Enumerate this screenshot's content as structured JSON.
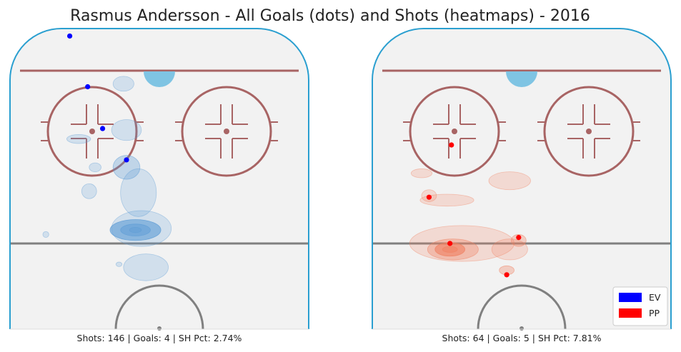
{
  "title": "Rasmus Andersson - All Goals (dots) and Shots (heatmaps) - 2016",
  "colors": {
    "ice": "#f2f2f2",
    "boards": "#2a9fd0",
    "red_line": "#a86464",
    "center_line": "#808080",
    "crease": "#7fc4e3",
    "ev": "#0000ff",
    "pp": "#ff0000",
    "ev_heat": "#5b9bd5",
    "pp_heat": "#f08060"
  },
  "legend": {
    "placement": "lower-right",
    "items": [
      {
        "label": "EV",
        "color": "#0000ff"
      },
      {
        "label": "PP",
        "color": "#ff0000"
      }
    ]
  },
  "chart_data": [
    {
      "type": "scatter",
      "strength": "EV",
      "caption": "Shots: 146 | Goals: 4 | SH Pct: 2.74%",
      "goals": [
        {
          "x": 0.4,
          "y": 0.05
        },
        {
          "x": 0.52,
          "y": 0.39
        },
        {
          "x": 0.62,
          "y": 0.67
        },
        {
          "x": 0.78,
          "y": 0.88
        }
      ],
      "heatmap": [
        {
          "x": 0.84,
          "y": 1.35,
          "w": 0.17,
          "h": 0.07,
          "v": 4
        },
        {
          "x": 0.84,
          "y": 1.35,
          "w": 0.1,
          "h": 0.04,
          "v": 3
        },
        {
          "x": 0.84,
          "y": 1.35,
          "w": 0.04,
          "h": 0.018,
          "v": 2
        },
        {
          "x": 0.78,
          "y": 0.93,
          "w": 0.09,
          "h": 0.08,
          "v": 2
        },
        {
          "x": 0.86,
          "y": 1.1,
          "w": 0.12,
          "h": 0.16,
          "v": 1
        },
        {
          "x": 0.78,
          "y": 0.68,
          "w": 0.1,
          "h": 0.07,
          "v": 1
        },
        {
          "x": 0.91,
          "y": 1.6,
          "w": 0.15,
          "h": 0.09,
          "v": 1
        },
        {
          "x": 0.88,
          "y": 1.34,
          "w": 0.2,
          "h": 0.12,
          "v": 1
        },
        {
          "x": 0.76,
          "y": 0.37,
          "w": 0.07,
          "h": 0.05,
          "v": 1
        },
        {
          "x": 0.46,
          "y": 0.74,
          "w": 0.08,
          "h": 0.03,
          "v": 1
        },
        {
          "x": 0.53,
          "y": 1.09,
          "w": 0.05,
          "h": 0.05,
          "v": 1
        },
        {
          "x": 0.57,
          "y": 0.93,
          "w": 0.04,
          "h": 0.03,
          "v": 1
        },
        {
          "x": 0.24,
          "y": 1.38,
          "w": 0.02,
          "h": 0.02,
          "v": 1
        },
        {
          "x": 0.73,
          "y": 1.58,
          "w": 0.02,
          "h": 0.015,
          "v": 1
        }
      ]
    },
    {
      "type": "scatter",
      "strength": "PP",
      "caption": "Shots: 64 | Goals: 5 | SH Pct: 7.81%",
      "goals": [
        {
          "x": 0.53,
          "y": 0.78
        },
        {
          "x": 0.38,
          "y": 1.13
        },
        {
          "x": 0.52,
          "y": 1.44
        },
        {
          "x": 0.9,
          "y": 1.65
        },
        {
          "x": 0.98,
          "y": 1.4
        }
      ],
      "heatmap": [
        {
          "x": 0.52,
          "y": 1.48,
          "w": 0.1,
          "h": 0.045,
          "v": 4
        },
        {
          "x": 0.52,
          "y": 1.48,
          "w": 0.05,
          "h": 0.02,
          "v": 3
        },
        {
          "x": 0.54,
          "y": 1.48,
          "w": 0.17,
          "h": 0.07,
          "v": 2
        },
        {
          "x": 0.6,
          "y": 1.44,
          "w": 0.35,
          "h": 0.12,
          "v": 1
        },
        {
          "x": 0.9,
          "y": 1.62,
          "w": 0.05,
          "h": 0.03,
          "v": 2
        },
        {
          "x": 0.98,
          "y": 1.42,
          "w": 0.05,
          "h": 0.04,
          "v": 2
        },
        {
          "x": 0.92,
          "y": 1.48,
          "w": 0.12,
          "h": 0.07,
          "v": 1
        },
        {
          "x": 0.92,
          "y": 1.02,
          "w": 0.14,
          "h": 0.06,
          "v": 1
        },
        {
          "x": 0.5,
          "y": 1.15,
          "w": 0.18,
          "h": 0.04,
          "v": 1
        },
        {
          "x": 0.38,
          "y": 1.12,
          "w": 0.05,
          "h": 0.04,
          "v": 1
        },
        {
          "x": 0.33,
          "y": 0.97,
          "w": 0.07,
          "h": 0.03,
          "v": 1
        }
      ]
    }
  ]
}
